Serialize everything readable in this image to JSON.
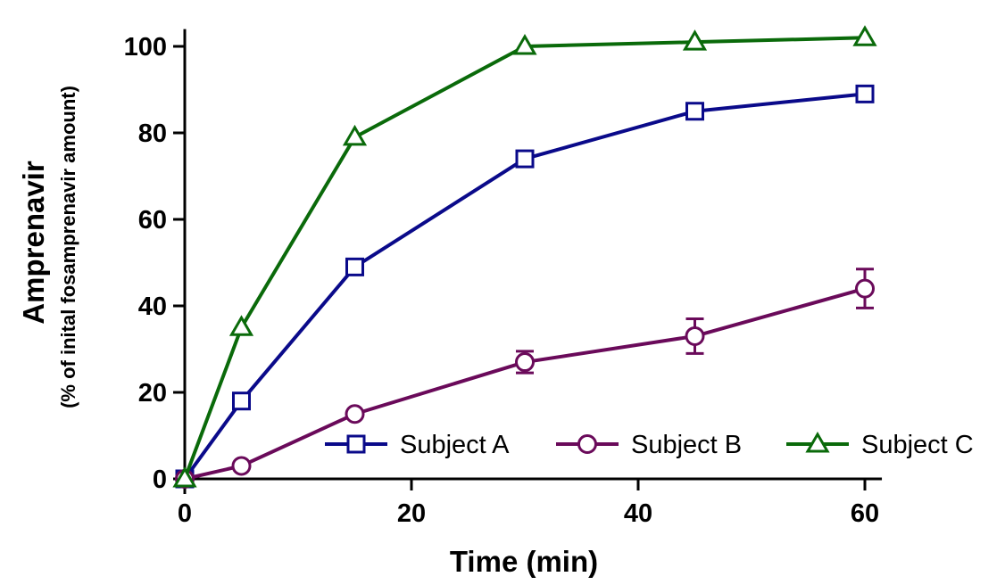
{
  "chart_data": {
    "type": "line",
    "xlabel": "Time (min)",
    "ylabel": "Amprenavir",
    "ylabel_sub": "(% of inital fosamprenavir amount)",
    "xlim": [
      0,
      60
    ],
    "ylim": [
      0,
      100
    ],
    "xticks": [
      0,
      20,
      40,
      60
    ],
    "yticks": [
      0,
      20,
      40,
      60,
      80,
      100
    ],
    "grid": false,
    "legend": "bottom-right",
    "series": [
      {
        "name": "Subject A",
        "color": "#0a0a8a",
        "marker": "square",
        "x": [
          0,
          5,
          15,
          30,
          45,
          60
        ],
        "y": [
          0,
          18,
          49,
          74,
          85,
          89
        ]
      },
      {
        "name": "Subject B",
        "color": "#6a0a5a",
        "marker": "circle",
        "x": [
          0,
          5,
          15,
          30,
          45,
          60
        ],
        "y": [
          0,
          3,
          15,
          27,
          33,
          44
        ],
        "error": [
          0,
          0,
          0,
          2.5,
          4,
          4.5
        ]
      },
      {
        "name": "Subject C",
        "color": "#0a6a0a",
        "marker": "triangle",
        "x": [
          0,
          5,
          15,
          30,
          45,
          60
        ],
        "y": [
          0,
          35,
          79,
          100,
          101,
          102
        ]
      }
    ]
  }
}
